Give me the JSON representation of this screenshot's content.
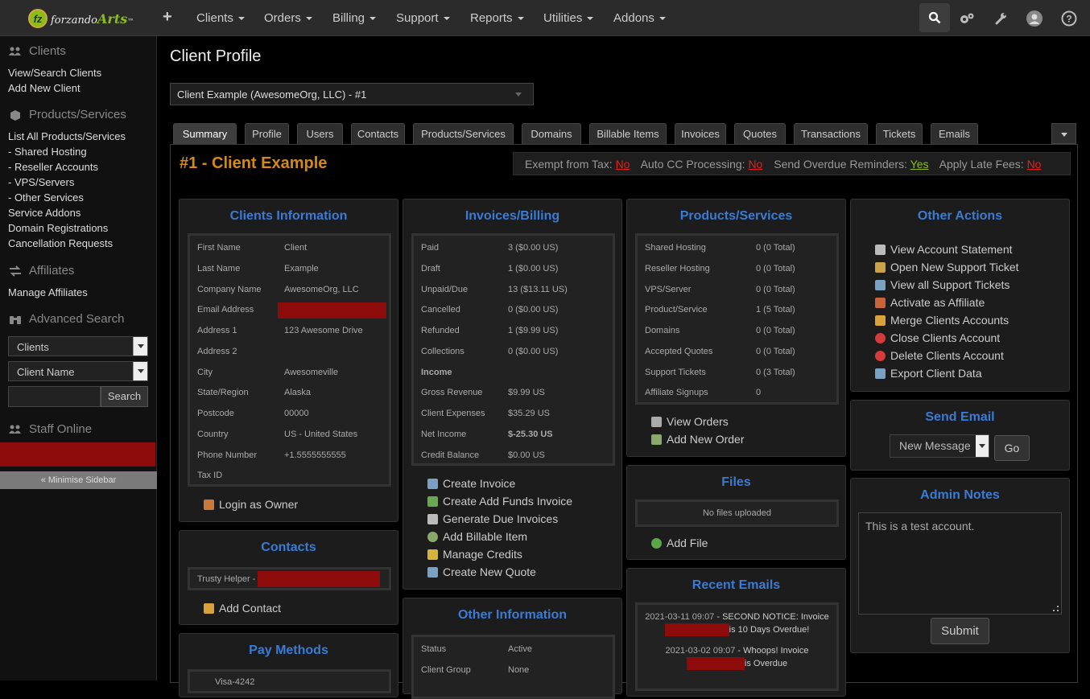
{
  "brand": {
    "logo_mark": "fz",
    "logo_name_a": "forzando",
    "logo_name_b": "Arts",
    "logo_tm": "™"
  },
  "nav": {
    "add_icon": "+",
    "items": [
      "Clients",
      "Orders",
      "Billing",
      "Support",
      "Reports",
      "Utilities",
      "Addons"
    ],
    "right_icons": [
      "search-icon",
      "gears-icon",
      "wrench-icon",
      "user-avatar-icon",
      "help-icon"
    ]
  },
  "sidebar": {
    "clients_head": "Clients",
    "view_clients": "View/Search Clients",
    "add_client": "Add New Client",
    "products_head": "Products/Services",
    "list_products": "List All Products/Services",
    "shared": "- Shared Hosting",
    "reseller": "- Reseller Accounts",
    "vps": "- VPS/Servers",
    "other": "- Other Services",
    "addons": "Service Addons",
    "domains": "Domain Registrations",
    "cancel": "Cancellation Requests",
    "affiliates_head": "Affiliates",
    "manage_affiliates": "Manage Affiliates",
    "adv_head": "Advanced Search",
    "adv_select1": "Clients",
    "adv_select2": "Client Name",
    "search_btn": "Search",
    "staff_head": "Staff Online",
    "minimise": "« Minimise Sidebar"
  },
  "page": {
    "title": "Client Profile",
    "client_select": "Client Example (AwesomeOrg, LLC) - #1",
    "tabs": [
      "Summary",
      "Profile",
      "Users",
      "Contacts",
      "Products/Services",
      "Domains",
      "Billable Items",
      "Invoices",
      "Quotes",
      "Transactions",
      "Tickets",
      "Emails"
    ],
    "client_heading": "#1 - Client Example",
    "flags": {
      "exempt_label": "Exempt from Tax:",
      "exempt": "No",
      "autocc_label": "Auto CC Processing:",
      "autocc": "No",
      "overdue_label": "Send Overdue Reminders:",
      "overdue": "Yes",
      "latefee_label": "Apply Late Fees:",
      "latefee": "No"
    }
  },
  "clients_info": {
    "title": "Clients Information",
    "rows": [
      [
        "First Name",
        "Client"
      ],
      [
        "Last Name",
        "Example"
      ],
      [
        "Company Name",
        "AwesomeOrg, LLC"
      ],
      [
        "Email Address",
        ""
      ],
      [
        "Address 1",
        "123 Awesome Drive"
      ],
      [
        "Address 2",
        ""
      ],
      [
        "City",
        "Awesomeville"
      ],
      [
        "State/Region",
        "Alaska"
      ],
      [
        "Postcode",
        "00000"
      ],
      [
        "Country",
        "US - United States"
      ],
      [
        "Phone Number",
        "+1.5555555555"
      ],
      [
        "Tax ID",
        ""
      ]
    ],
    "login_owner": "Login as Owner"
  },
  "contacts": {
    "title": "Contacts",
    "contact": "Trusty Helper -",
    "add_contact": "Add Contact"
  },
  "pay_methods": {
    "title": "Pay Methods",
    "first": "Visa-4242"
  },
  "invoices": {
    "title": "Invoices/Billing",
    "rows": [
      [
        "Paid",
        "3 ($0.00 US)"
      ],
      [
        "Draft",
        "1 ($0.00 US)"
      ],
      [
        "Unpaid/Due",
        "13 ($13.11 US)"
      ],
      [
        "Cancelled",
        "0 ($0.00 US)"
      ],
      [
        "Refunded",
        "1 ($9.99 US)"
      ],
      [
        "Collections",
        "0 ($0.00 US)"
      ],
      [
        "Income",
        ""
      ],
      [
        "Gross Revenue",
        "$9.99 US"
      ],
      [
        "Client Expenses",
        "$35.29 US"
      ],
      [
        "Net Income",
        "$-25.30 US"
      ],
      [
        "Credit Balance",
        "$0.00 US"
      ]
    ],
    "actions": [
      "Create Invoice",
      "Create Add Funds Invoice",
      "Generate Due Invoices",
      "Add Billable Item",
      "Manage Credits",
      "Create New Quote"
    ]
  },
  "other_info": {
    "title": "Other Information",
    "rows": [
      [
        "Status",
        "Active"
      ],
      [
        "Client Group",
        "None"
      ]
    ]
  },
  "products": {
    "title": "Products/Services",
    "rows": [
      [
        "Shared Hosting",
        "0 (0 Total)"
      ],
      [
        "Reseller Hosting",
        "0 (0 Total)"
      ],
      [
        "VPS/Server",
        "0 (0 Total)"
      ],
      [
        "Product/Service",
        "1 (5 Total)"
      ],
      [
        "Domains",
        "0 (0 Total)"
      ],
      [
        "Accepted Quotes",
        "0 (0 Total)"
      ],
      [
        "Support Tickets",
        "0 (3 Total)"
      ],
      [
        "Affiliate Signups",
        "0"
      ]
    ],
    "view_orders": "View Orders",
    "add_order": "Add New Order"
  },
  "files": {
    "title": "Files",
    "empty": "No files uploaded",
    "add_file": "Add File"
  },
  "recent_emails": {
    "title": "Recent Emails",
    "items": [
      {
        "date": "2021-03-11 09:07",
        "sep": " - ",
        "subject_a": "SECOND NOTICE: Invoice",
        "subject_b": "is 10 Days Overdue!"
      },
      {
        "date": "2021-03-02 09:07",
        "sep": " - ",
        "subject_a": "Whoops! Invoice",
        "subject_b": "is Overdue"
      }
    ]
  },
  "other_actions": {
    "title": "Other Actions",
    "items": [
      "View Account Statement",
      "Open New Support Ticket",
      "View all Support Tickets",
      "Activate as Affiliate",
      "Merge Clients Accounts",
      "Close Clients Account",
      "Delete Clients Account",
      "Export Client Data"
    ]
  },
  "send_email": {
    "title": "Send Email",
    "select": "New Message",
    "go": "Go"
  },
  "admin_notes": {
    "title": "Admin Notes",
    "text": "This is a test account.",
    "submit": "Submit"
  },
  "colors": {
    "accent": "#3a7bd5",
    "heading": "#d68a12",
    "red": "#e02020",
    "green": "#8bbd1a",
    "redact": "#8e0b0b"
  }
}
